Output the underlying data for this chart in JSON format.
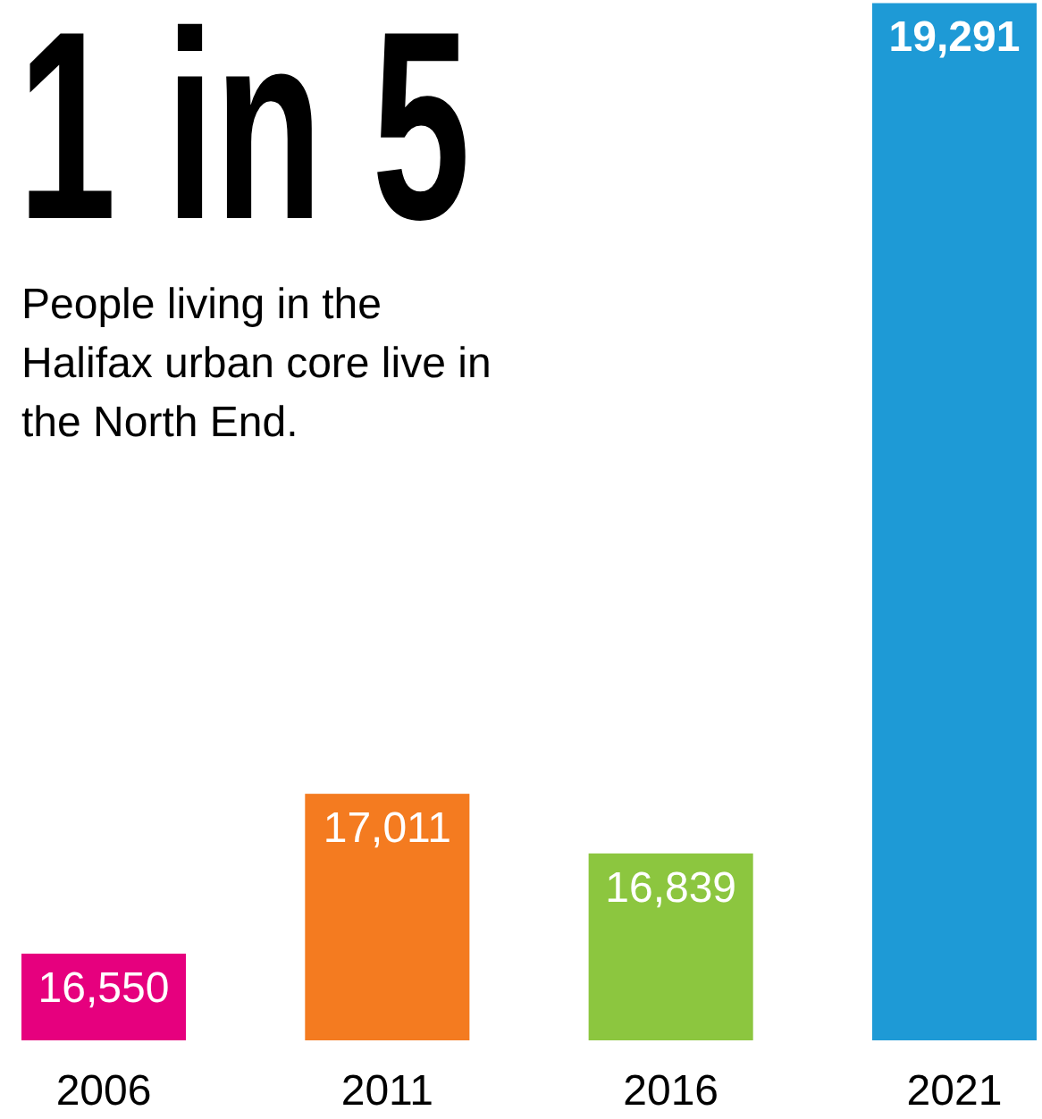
{
  "chart_data": {
    "type": "bar",
    "title": "1 in 5",
    "subtitle": "People living in the Halifax urban core live in the North End.",
    "categories": [
      "2006",
      "2011",
      "2016",
      "2021"
    ],
    "values": [
      16550,
      17011,
      16839,
      19291
    ],
    "value_labels": [
      "16,550",
      "17,011",
      "16,839",
      "19,291"
    ],
    "colors": [
      "#e6007e",
      "#f47b20",
      "#8cc63f",
      "#1e9ad6"
    ],
    "ylim": [
      16300,
      19300
    ],
    "tick_labels": "x"
  }
}
